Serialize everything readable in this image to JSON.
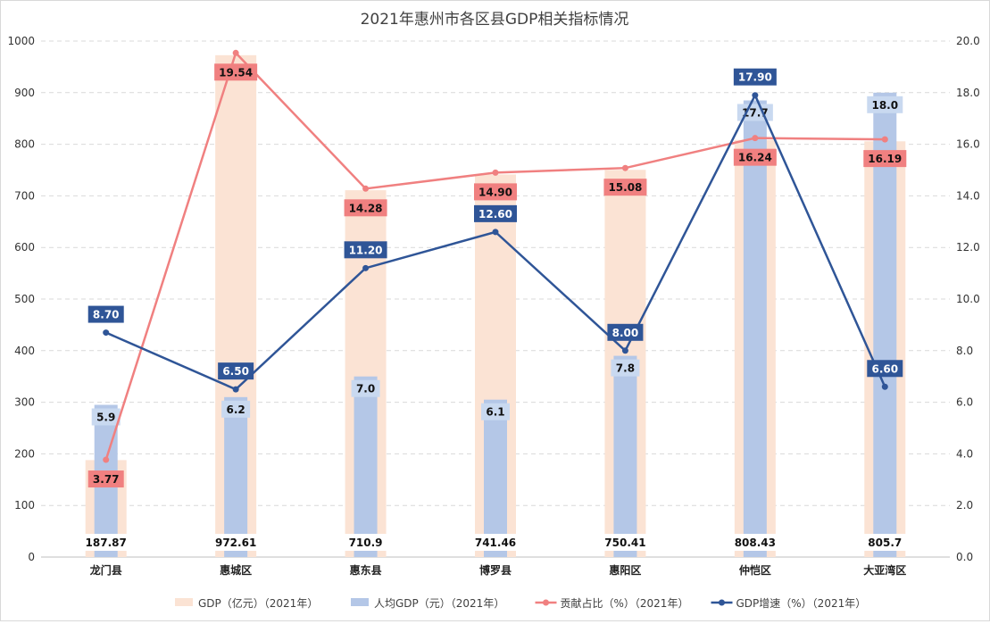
{
  "chart_data": {
    "type": "bar+line",
    "title": "2021年惠州市各区县GDP相关指标情况",
    "categories": [
      "龙门县",
      "惠城区",
      "惠东县",
      "博罗县",
      "惠阳区",
      "仲恺区",
      "大亚湾区"
    ],
    "y_left": {
      "range": [
        0,
        1000
      ],
      "ticks": [
        "0",
        "100",
        "200",
        "300",
        "400",
        "500",
        "600",
        "700",
        "800",
        "900",
        "1000"
      ]
    },
    "y_right": {
      "range": [
        0,
        20
      ],
      "ticks": [
        "0.0",
        "2.0",
        "4.0",
        "6.0",
        "8.0",
        "10.0",
        "12.0",
        "14.0",
        "16.0",
        "18.0",
        "20.0"
      ]
    },
    "grid": true,
    "legend_position": "bottom",
    "series": [
      {
        "name": "GDP（亿元）（2021年）",
        "type": "bar",
        "axis": "left",
        "color": "#fbe3d4",
        "values": [
          187.87,
          972.61,
          710.9,
          741.46,
          750.41,
          808.43,
          805.7
        ],
        "labels": [
          "187.87",
          "972.61",
          "710.9",
          "741.46",
          "750.41",
          "808.43",
          "805.7"
        ]
      },
      {
        "name": "人均GDP（元）（2021年）",
        "type": "bar",
        "axis": "left",
        "color": "#b4c7e7",
        "values": [
          5.9,
          6.2,
          7.0,
          6.1,
          7.8,
          17.7,
          18.0
        ],
        "labels": [
          "5.9",
          "6.2",
          "7.0",
          "6.1",
          "7.8",
          "17.7",
          "18.0"
        ]
      },
      {
        "name": "贡献占比（%）（2021年）",
        "type": "line",
        "axis": "right",
        "color": "#f08080",
        "values": [
          3.77,
          19.54,
          14.28,
          14.9,
          15.08,
          16.24,
          16.19
        ],
        "labels": [
          "3.77",
          "19.54",
          "14.28",
          "14.90",
          "15.08",
          "16.24",
          "16.19"
        ]
      },
      {
        "name": "GDP增速（%）（2021年）",
        "type": "line",
        "axis": "right",
        "color": "#2f5597",
        "values": [
          8.7,
          6.5,
          11.2,
          12.6,
          8.0,
          17.9,
          6.6
        ],
        "labels": [
          "8.70",
          "6.50",
          "11.20",
          "12.60",
          "8.00",
          "17.90",
          "6.60"
        ]
      }
    ]
  }
}
